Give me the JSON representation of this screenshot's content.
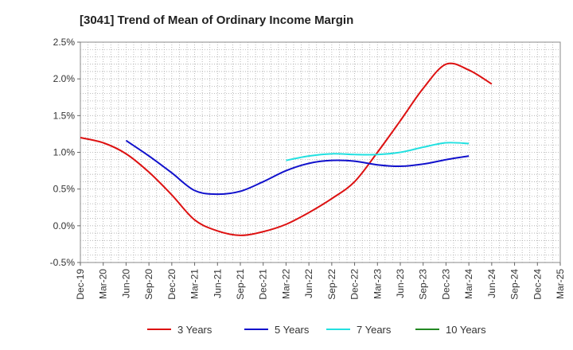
{
  "chart_data": {
    "type": "line",
    "title": "[3041]  Trend of Mean of Ordinary Income Margin",
    "xlabel": "",
    "ylabel": "",
    "ylim": [
      -0.5,
      2.5
    ],
    "y_ticks": [
      "-0.5%",
      "0.0%",
      "0.5%",
      "1.0%",
      "1.5%",
      "2.0%",
      "2.5%"
    ],
    "y_tick_values": [
      -0.5,
      0.0,
      0.5,
      1.0,
      1.5,
      2.0,
      2.5
    ],
    "categories": [
      "Dec-19",
      "Mar-20",
      "Jun-20",
      "Sep-20",
      "Dec-20",
      "Mar-21",
      "Jun-21",
      "Sep-21",
      "Dec-21",
      "Mar-22",
      "Jun-22",
      "Sep-22",
      "Dec-22",
      "Mar-23",
      "Jun-23",
      "Sep-23",
      "Dec-23",
      "Mar-24",
      "Jun-24",
      "Sep-24",
      "Dec-24",
      "Mar-25"
    ],
    "grid": true,
    "legend_position": "bottom",
    "series": [
      {
        "name": "3 Years",
        "color": "#dd1111",
        "values": [
          1.2,
          1.13,
          0.98,
          0.73,
          0.42,
          0.08,
          -0.07,
          -0.13,
          -0.08,
          0.02,
          0.18,
          0.37,
          0.6,
          1.0,
          1.43,
          1.87,
          2.2,
          2.12,
          1.93,
          null,
          null,
          null
        ]
      },
      {
        "name": "5 Years",
        "color": "#1111cc",
        "values": [
          null,
          null,
          1.16,
          0.95,
          0.72,
          0.48,
          0.43,
          0.47,
          0.6,
          0.75,
          0.85,
          0.89,
          0.88,
          0.83,
          0.81,
          0.84,
          0.9,
          0.95,
          null,
          null,
          null,
          null
        ]
      },
      {
        "name": "7 Years",
        "color": "#22e0e0",
        "values": [
          null,
          null,
          null,
          null,
          null,
          null,
          null,
          null,
          null,
          0.89,
          0.95,
          0.98,
          0.97,
          0.97,
          1.0,
          1.07,
          1.13,
          1.12,
          null,
          null,
          null,
          null
        ]
      },
      {
        "name": "10 Years",
        "color": "#228822",
        "values": [
          null,
          null,
          null,
          null,
          null,
          null,
          null,
          null,
          null,
          null,
          null,
          null,
          null,
          null,
          null,
          null,
          null,
          null,
          null,
          null,
          null,
          null
        ]
      }
    ]
  }
}
